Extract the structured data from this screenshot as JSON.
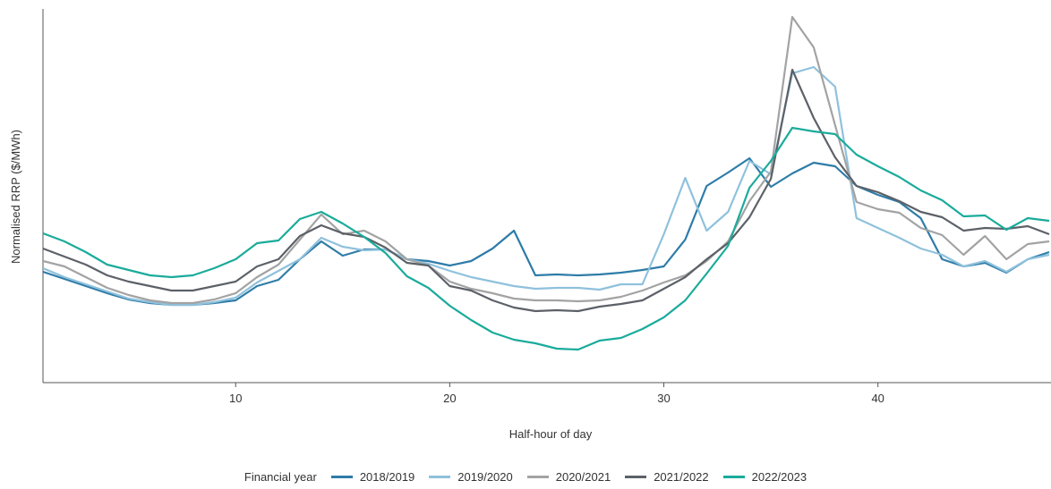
{
  "chart_data": {
    "type": "line",
    "x_label": "Half-hour of day",
    "y_label": "Normalised RRP ($/MWh)",
    "legend_title": "Financial year",
    "legend_position": "bottom",
    "grid": false,
    "x": [
      1,
      2,
      3,
      4,
      5,
      6,
      7,
      8,
      9,
      10,
      11,
      12,
      13,
      14,
      15,
      16,
      17,
      18,
      19,
      20,
      21,
      22,
      23,
      24,
      25,
      26,
      27,
      28,
      29,
      30,
      31,
      32,
      33,
      34,
      35,
      36,
      37,
      38,
      39,
      40,
      41,
      42,
      43,
      44,
      45,
      46,
      47,
      48
    ],
    "xlim": [
      1,
      48
    ],
    "xticks": [
      10,
      20,
      30,
      40
    ],
    "ylim": [
      0,
      418
    ],
    "series": [
      {
        "name": "2018/2019",
        "color": "#2e7ca8",
        "values": [
          124,
          116,
          108,
          100,
          93,
          89,
          87,
          87,
          89,
          92,
          108,
          115,
          138,
          158,
          142,
          149,
          149,
          138,
          136,
          131,
          136,
          150,
          170,
          120,
          121,
          120,
          121,
          123,
          126,
          130,
          160,
          220,
          235,
          251,
          219,
          234,
          246,
          242,
          220,
          210,
          202,
          184,
          138,
          130,
          134,
          123,
          138,
          146
        ]
      },
      {
        "name": "2019/2020",
        "color": "#8fc1dc",
        "values": [
          128,
          118,
          110,
          102,
          94,
          90,
          87,
          87,
          90,
          95,
          112,
          125,
          138,
          162,
          152,
          148,
          149,
          138,
          133,
          125,
          118,
          113,
          108,
          105,
          106,
          106,
          104,
          110,
          110,
          166,
          229,
          170,
          191,
          248,
          233,
          346,
          353,
          331,
          184,
          173,
          162,
          150,
          143,
          130,
          136,
          124,
          138,
          143
        ]
      },
      {
        "name": "2020/2021",
        "color": "#a3a3a3",
        "values": [
          136,
          130,
          118,
          106,
          98,
          92,
          89,
          89,
          93,
          100,
          118,
          132,
          160,
          188,
          166,
          170,
          158,
          138,
          131,
          113,
          105,
          100,
          94,
          92,
          92,
          91,
          92,
          96,
          103,
          112,
          120,
          136,
          158,
          203,
          236,
          409,
          375,
          288,
          202,
          194,
          190,
          173,
          165,
          143,
          164,
          138,
          155,
          158
        ]
      },
      {
        "name": "2021/2022",
        "color": "#5c6168",
        "values": [
          150,
          141,
          132,
          120,
          113,
          108,
          103,
          103,
          108,
          113,
          130,
          138,
          164,
          176,
          167,
          163,
          151,
          134,
          131,
          108,
          103,
          92,
          84,
          80,
          81,
          80,
          85,
          88,
          92,
          105,
          118,
          138,
          156,
          185,
          228,
          350,
          296,
          252,
          220,
          213,
          203,
          191,
          185,
          170,
          173,
          172,
          175,
          166
        ]
      },
      {
        "name": "2022/2023",
        "color": "#1aab9b",
        "values": [
          167,
          158,
          146,
          132,
          126,
          120,
          118,
          120,
          128,
          138,
          156,
          159,
          183,
          191,
          178,
          163,
          145,
          119,
          106,
          86,
          70,
          56,
          48,
          44,
          38,
          37,
          47,
          50,
          60,
          73,
          92,
          122,
          153,
          218,
          248,
          285,
          281,
          278,
          255,
          242,
          230,
          215,
          204,
          186,
          187,
          171,
          184,
          181
        ]
      }
    ]
  }
}
